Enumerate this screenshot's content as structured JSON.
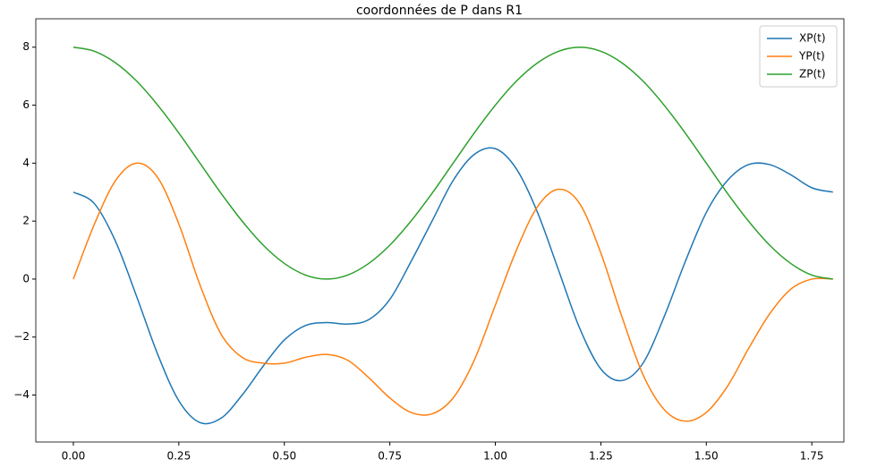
{
  "chart_data": {
    "type": "line",
    "title": "coordonnées de P dans R1",
    "x": [
      0,
      0.05,
      0.1,
      0.15,
      0.2,
      0.25,
      0.3,
      0.35,
      0.4,
      0.45,
      0.5,
      0.55,
      0.6,
      0.65,
      0.7,
      0.75,
      0.8,
      0.85,
      0.9,
      0.95,
      1.0,
      1.05,
      1.1,
      1.15,
      1.2,
      1.25,
      1.3,
      1.35,
      1.4,
      1.45,
      1.5,
      1.55,
      1.6,
      1.65,
      1.7,
      1.75,
      1.8
    ],
    "series": [
      {
        "name": "XP(t)",
        "color": "#1f77b4",
        "values": [
          3,
          2.6,
          1.3,
          -0.6,
          -2.6,
          -4.2,
          -4.95,
          -4.8,
          -4.0,
          -3.0,
          -2.1,
          -1.6,
          -1.5,
          -1.55,
          -1.4,
          -0.7,
          0.6,
          2.0,
          3.4,
          4.3,
          4.5,
          3.8,
          2.3,
          0.3,
          -1.7,
          -3.1,
          -3.5,
          -2.9,
          -1.3,
          0.6,
          2.3,
          3.4,
          3.95,
          3.95,
          3.6,
          3.15,
          3.0
        ]
      },
      {
        "name": "YP(t)",
        "color": "#ff7f0e",
        "values": [
          0,
          1.9,
          3.4,
          4.0,
          3.5,
          1.9,
          -0.2,
          -1.9,
          -2.7,
          -2.9,
          -2.9,
          -2.7,
          -2.6,
          -2.8,
          -3.4,
          -4.1,
          -4.6,
          -4.65,
          -4.1,
          -2.8,
          -0.9,
          1.0,
          2.5,
          3.1,
          2.6,
          0.9,
          -1.3,
          -3.3,
          -4.5,
          -4.9,
          -4.6,
          -3.7,
          -2.4,
          -1.2,
          -0.35,
          0,
          0
        ]
      },
      {
        "name": "ZP(t)",
        "color": "#2ca02c",
        "values": [
          8,
          7.86,
          7.46,
          6.83,
          6,
          5.04,
          4,
          2.96,
          2,
          1.17,
          0.54,
          0.14,
          0,
          0.14,
          0.54,
          1.17,
          2,
          2.96,
          4,
          5.04,
          6,
          6.83,
          7.46,
          7.86,
          8,
          7.86,
          7.46,
          6.83,
          6,
          5.04,
          4,
          2.96,
          2,
          1.17,
          0.54,
          0.14,
          0
        ]
      }
    ],
    "xlim": [
      -0.089,
      1.826
    ],
    "ylim": [
      -5.62,
      8.98
    ],
    "xticks": [
      {
        "value": 0,
        "label": "0.00"
      },
      {
        "value": 0.25,
        "label": "0.25"
      },
      {
        "value": 0.5,
        "label": "0.50"
      },
      {
        "value": 0.75,
        "label": "0.75"
      },
      {
        "value": 1.0,
        "label": "1.00"
      },
      {
        "value": 1.25,
        "label": "1.25"
      },
      {
        "value": 1.5,
        "label": "1.50"
      },
      {
        "value": 1.75,
        "label": "1.75"
      }
    ],
    "yticks": [
      {
        "value": -4,
        "label": "−4"
      },
      {
        "value": -2,
        "label": "−2"
      },
      0,
      2,
      4,
      6,
      8
    ],
    "legend": "upper right",
    "grid": false
  }
}
